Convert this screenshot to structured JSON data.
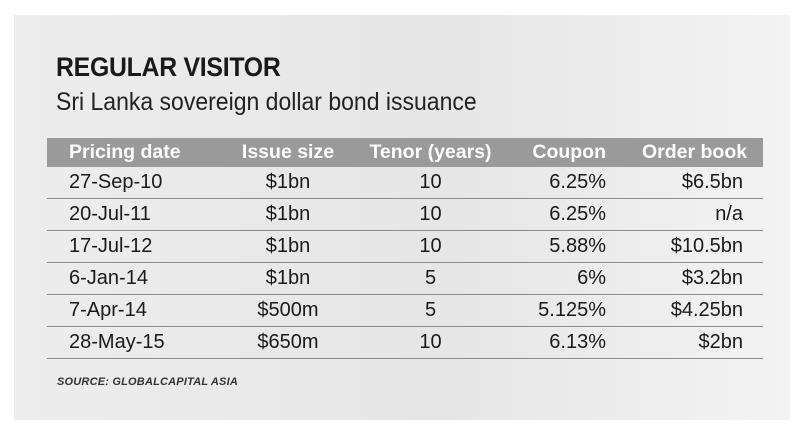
{
  "chart_data": {
    "type": "table",
    "title": "REGULAR VISITOR",
    "subtitle": "Sri Lanka sovereign dollar bond issuance",
    "columns": [
      "Pricing date",
      "Issue size",
      "Tenor (years)",
      "Coupon",
      "Order book"
    ],
    "rows": [
      [
        "27-Sep-10",
        "$1bn",
        "10",
        "6.25%",
        "$6.5bn"
      ],
      [
        "20-Jul-11",
        "$1bn",
        "10",
        "6.25%",
        "n/a"
      ],
      [
        "17-Jul-12",
        "$1bn",
        "10",
        "5.88%",
        "$10.5bn"
      ],
      [
        "6-Jan-14",
        "$1bn",
        "5",
        "6%",
        "$3.2bn"
      ],
      [
        "7-Apr-14",
        "$500m",
        "5",
        "5.125%",
        "$4.25bn"
      ],
      [
        "28-May-15",
        "$650m",
        "10",
        "6.13%",
        "$2bn"
      ]
    ],
    "source": "SOURCE: GLOBALCAPITAL ASIA"
  },
  "colors": {
    "header_bg": "#9a9a9a",
    "header_text": "#ffffff",
    "panel_bg": "#e8e8e8",
    "text": "#1a1a1a"
  }
}
